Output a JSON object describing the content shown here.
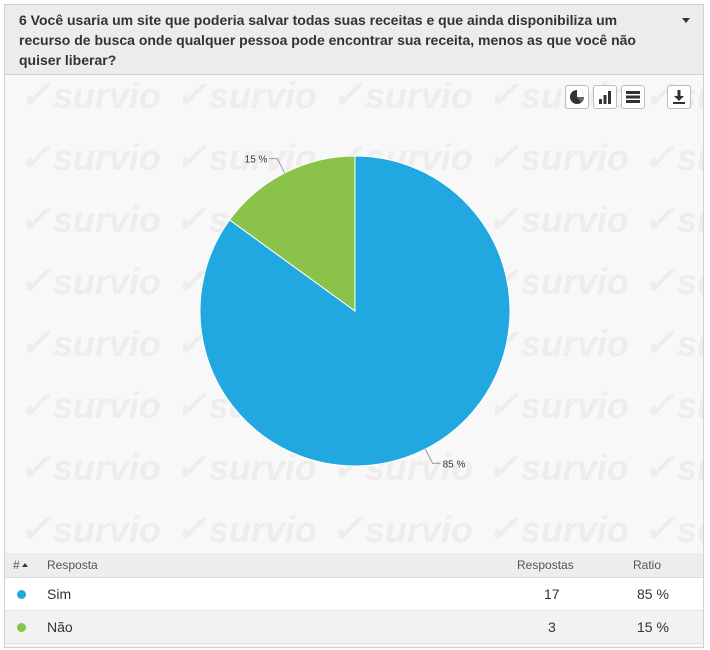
{
  "question": {
    "text": "6 Você usaria um site que poderia salvar todas suas receitas e que ainda disponibiliza um recurso de busca onde qualquer pessoa pode encontrar sua receita, menos as que você não quiser liberar?"
  },
  "watermark": {
    "text": "survio",
    "check": "✓"
  },
  "toolbar": {
    "buttons": [
      {
        "name": "pie-chart-button",
        "icon": "pie-chart-icon"
      },
      {
        "name": "bar-chart-button",
        "icon": "bar-chart-icon"
      },
      {
        "name": "table-view-button",
        "icon": "table-icon"
      },
      {
        "name": "download-button",
        "icon": "download-icon"
      }
    ]
  },
  "chart_data": {
    "type": "pie",
    "title": "",
    "slices": [
      {
        "label": "Sim",
        "value": 85,
        "count": 17,
        "data_label": "85 %",
        "color": "#21a8e0"
      },
      {
        "label": "Não",
        "value": 15,
        "count": 3,
        "data_label": "15 %",
        "color": "#8bc34a"
      }
    ],
    "start_angle_deg": 0,
    "direction": "clockwise"
  },
  "table": {
    "headers": {
      "num": "#",
      "answer": "Resposta",
      "responses": "Respostas",
      "ratio": "Ratio"
    },
    "rows": [
      {
        "answer": "Sim",
        "responses": "17",
        "ratio": "85 %",
        "color": "#21a8e0"
      },
      {
        "answer": "Não",
        "responses": "3",
        "ratio": "15 %",
        "color": "#8bc34a"
      }
    ]
  }
}
